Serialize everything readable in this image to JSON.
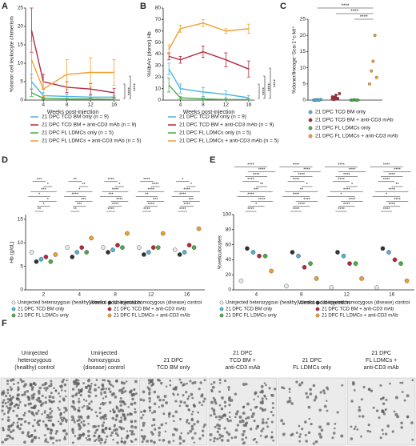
{
  "chart_data": [
    {
      "panel": "A",
      "type": "line",
      "xlabel": "Weeks post-injection",
      "ylabel": "%donor cell leukocyte chimerism",
      "x": [
        2,
        4,
        8,
        12,
        16
      ],
      "xlim": [
        1,
        17
      ],
      "xticks": [
        4,
        8,
        12,
        16
      ],
      "ylim": [
        0,
        25
      ],
      "yticks": [
        0,
        5,
        10,
        15,
        20,
        25
      ],
      "series": [
        {
          "name": "21 DPC TCD BM only (n = 9)",
          "color": "#4fb3e0",
          "values": [
            5,
            1.2,
            1,
            0.8,
            0.8
          ],
          "errors": [
            2,
            0.8,
            0.6,
            0.5,
            0.5
          ]
        },
        {
          "name": "21 DPC TCD BM + anti-CD3 mAb (n = 9)",
          "color": "#b22a3e",
          "values": [
            19,
            5,
            3.5,
            3,
            2
          ],
          "errors": [
            6,
            2,
            1.5,
            1.5,
            1.2
          ]
        },
        {
          "name": "21 DPC FL LDMCs only (n = 5)",
          "color": "#4bab45",
          "values": [
            2,
            0.5,
            0.3,
            0.3,
            0.2
          ],
          "errors": [
            1,
            0.3,
            0.2,
            0.2,
            0.2
          ]
        },
        {
          "name": "21 DPC FL LDMCs + anti-CD3 mAb (n = 5)",
          "color": "#f0a030",
          "values": [
            11,
            3,
            7,
            7.5,
            7.5
          ],
          "errors": [
            5,
            2,
            4,
            4,
            3.5
          ]
        }
      ],
      "annotations": [
        "****",
        "****"
      ]
    },
    {
      "panel": "B",
      "type": "line",
      "xlabel": "Weeks post-injection",
      "ylabel": "%HbA/c (donor) Hb",
      "x": [
        2,
        4,
        8,
        12,
        16
      ],
      "xlim": [
        1,
        17
      ],
      "xticks": [
        4,
        8,
        12,
        16
      ],
      "ylim": [
        0,
        80
      ],
      "yticks": [
        0,
        10,
        20,
        30,
        40,
        50,
        60,
        70,
        80
      ],
      "series": [
        {
          "name": "21 DPC TCD BM only (n = 9)",
          "color": "#4fb3e0",
          "values": [
            27,
            10,
            7,
            5,
            2
          ],
          "errors": [
            5,
            4,
            4,
            3,
            2
          ]
        },
        {
          "name": "21 DPC TCD BM + anti-CD3 mAb (n = 9)",
          "color": "#b22a3e",
          "values": [
            38,
            35,
            42,
            35,
            27
          ],
          "errors": [
            3,
            3,
            5,
            6,
            7
          ]
        },
        {
          "name": "21 DPC FL LDMCs only (n = 5)",
          "color": "#4bab45",
          "values": [
            13,
            2,
            1,
            0.5,
            0.5
          ],
          "errors": [
            6,
            1,
            1,
            0.5,
            0.5
          ]
        },
        {
          "name": "21 DPC FL LDMCs + anti-CD3 mAb (n = 5)",
          "color": "#f0a030",
          "values": [
            44,
            62,
            67,
            60,
            62
          ],
          "errors": [
            4,
            3,
            3,
            2,
            4
          ]
        }
      ],
      "annotations": [
        "****",
        "****",
        "****"
      ]
    },
    {
      "panel": "C",
      "type": "dot",
      "ylabel": "%donor/lineage⁻Sca-1⁺c-kit⁺",
      "ylim": [
        0,
        25
      ],
      "yticks": [
        0,
        5,
        10,
        15,
        20,
        25
      ],
      "series": [
        {
          "name": "21 DPC TCD BM only",
          "color": "#4fb3e0",
          "values": [
            0,
            0,
            0.1,
            0,
            0.2,
            0,
            0.1,
            0,
            0
          ]
        },
        {
          "name": "21 DPC TCD BM + anti-CD3 mAb",
          "color": "#b22a3e",
          "values": [
            0.3,
            0.8,
            1.5,
            0.5,
            2,
            1,
            0.2,
            0.6,
            0.4
          ]
        },
        {
          "name": "21 DPC FL LDMCs only",
          "color": "#4bab45",
          "values": [
            0,
            0,
            0.1,
            0,
            0
          ]
        },
        {
          "name": "21 DPC FL LDMCs + anti-CD3 mAb",
          "color": "#f0a030",
          "values": [
            5,
            9,
            12,
            20,
            7
          ]
        }
      ],
      "annotations": [
        "****",
        "****",
        "****"
      ]
    },
    {
      "panel": "D",
      "type": "grouped-dot",
      "xlabel": "Weeks post-injection",
      "ylabel": "Hb (g/dL)",
      "categories": [
        "2",
        "4",
        "8",
        "12",
        "16"
      ],
      "ylim": [
        0,
        16
      ],
      "yticks": [
        0,
        5,
        10,
        15
      ],
      "series": [
        {
          "name": "Uninjected heterozygous (healthy) control",
          "color": "#e8e8e8",
          "values": [
            8,
            9,
            9,
            9,
            8.5
          ]
        },
        {
          "name": "Uninjected homozygous (disease) control",
          "color": "#333333",
          "values": [
            6,
            7,
            8,
            7.5,
            7.5
          ]
        },
        {
          "name": "21 DPC TCD BM only",
          "color": "#4fb3e0",
          "values": [
            6.5,
            8,
            8.5,
            8,
            8
          ]
        },
        {
          "name": "21 DPC TCD BM + anti-CD3 mAb",
          "color": "#b22a3e",
          "values": [
            7,
            9,
            9.5,
            9,
            9.5
          ]
        },
        {
          "name": "21 DPC FL LDMCs only",
          "color": "#4bab45",
          "values": [
            6,
            8,
            9,
            9,
            9
          ]
        },
        {
          "name": "21 DPC FL LDMCs + anti-CD3 mAb",
          "color": "#f0a030",
          "values": [
            7.5,
            11,
            12,
            12,
            13
          ]
        }
      ],
      "annotations": [
        [
          "**",
          "*",
          "*",
          "*",
          "***",
          "*",
          "***"
        ],
        [
          "**",
          "***",
          "***",
          "****",
          "*",
          "**",
          "**"
        ],
        [
          "****",
          "****",
          "****",
          "***",
          "****",
          "*",
          "****"
        ],
        [
          "****",
          "****",
          "***",
          "**",
          "****",
          "****",
          "****"
        ],
        [
          "****",
          "****",
          "***",
          "****",
          "****",
          "*",
          "*"
        ]
      ]
    },
    {
      "panel": "E",
      "type": "grouped-dot",
      "xlabel": "Weeks post-injection",
      "ylabel": "%reticulocytes",
      "categories": [
        "4",
        "8",
        "12",
        "16"
      ],
      "ylim": [
        0,
        100
      ],
      "yticks": [
        0,
        20,
        40,
        60,
        80,
        100
      ],
      "series": [
        {
          "name": "Uninjected heterozygous (healthy) control",
          "color": "#e8e8e8",
          "values": [
            12,
            5,
            3,
            3
          ]
        },
        {
          "name": "Uninjected homozygous (disease) control",
          "color": "#333333",
          "values": [
            55,
            50,
            50,
            55
          ]
        },
        {
          "name": "21 DPC TCD BM only",
          "color": "#4fb3e0",
          "values": [
            50,
            45,
            45,
            50
          ]
        },
        {
          "name": "21 DPC TCD BM + anti-CD3 mAb",
          "color": "#b22a3e",
          "values": [
            45,
            30,
            35,
            40
          ]
        },
        {
          "name": "21 DPC FL LDMCs only",
          "color": "#4bab45",
          "values": [
            45,
            35,
            35,
            35
          ]
        },
        {
          "name": "21 DPC FL LDMCs + anti-CD3 mAb",
          "color": "#f0a030",
          "values": [
            25,
            15,
            15,
            12
          ]
        }
      ],
      "annotations": [
        [
          "****",
          "*",
          "****",
          "****",
          "***",
          "**",
          "****",
          "****",
          "****",
          "****"
        ],
        [
          "****",
          "****",
          "****",
          "****",
          "**",
          "*",
          "****",
          "****",
          "****",
          "****"
        ],
        [
          "****",
          "****",
          "****",
          "*",
          "****",
          "*",
          "****",
          "****",
          "****",
          "****"
        ],
        [
          "****",
          "****",
          "****",
          "*",
          "****",
          "**",
          "****",
          "****",
          "****",
          "****"
        ]
      ]
    }
  ],
  "panel_f": {
    "panel": "F",
    "labels": [
      [
        "Uninjected",
        "heterozygous",
        "(healthy) control"
      ],
      [
        "Uninjected",
        "homozygous",
        "(disease) control"
      ],
      [
        "21 DPC",
        "TCD BM only"
      ],
      [
        "21 DPC",
        "TCD BM +",
        "anti-CD3 mAb"
      ],
      [
        "21 DPC",
        "FL LDMCs only"
      ],
      [
        "21 DPC",
        "FL LDMCs +",
        "anti-CD3 mAb"
      ]
    ]
  }
}
